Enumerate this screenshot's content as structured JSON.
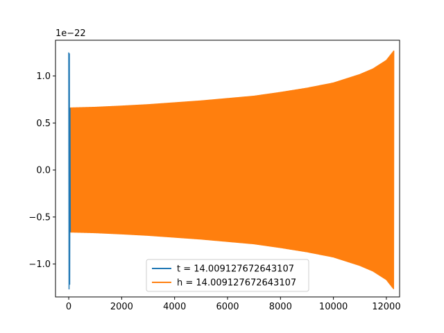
{
  "chart_data": {
    "type": "line",
    "title": "",
    "xlabel": "",
    "ylabel": "",
    "offset_text": "1e−22",
    "xlim": [
      -500,
      12500
    ],
    "ylim": [
      -1.35,
      1.38
    ],
    "grid": false,
    "legend_position": "lower center",
    "x_ticks": [
      0,
      2000,
      4000,
      6000,
      8000,
      10000,
      12000
    ],
    "x_tick_labels": [
      "0",
      "2000",
      "4000",
      "6000",
      "8000",
      "10000",
      "12000"
    ],
    "y_ticks": [
      -1.0,
      -0.5,
      0.0,
      0.5,
      1.0
    ],
    "y_tick_labels": [
      "−1.0",
      "−0.5",
      "0.0",
      "0.5",
      "1.0"
    ],
    "series": [
      {
        "name": "t = 14.009127672643107",
        "color": "#1f77b4",
        "description_points": {
          "x": [
            0,
            12,
            24,
            36,
            48,
            60
          ],
          "y": [
            1.25,
            -1.27,
            1.24,
            -1.22,
            0.66,
            -0.66
          ]
        }
      },
      {
        "name": "h = 14.009127672643107",
        "color": "#ff7f0e",
        "envelope": {
          "x": [
            60,
            1000,
            2000,
            3000,
            4000,
            5000,
            6000,
            7000,
            8000,
            9000,
            10000,
            11000,
            11500,
            12000,
            12280
          ],
          "amplitude": [
            0.665,
            0.672,
            0.685,
            0.7,
            0.72,
            0.74,
            0.765,
            0.79,
            0.83,
            0.875,
            0.93,
            1.02,
            1.08,
            1.17,
            1.27
          ]
        }
      }
    ]
  }
}
